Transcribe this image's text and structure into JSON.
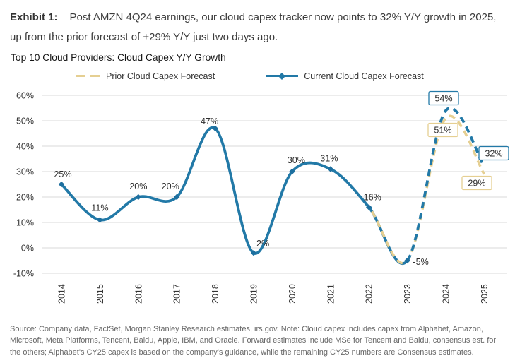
{
  "header": {
    "exhibit_label": "Exhibit 1:",
    "exhibit_text": "Post AMZN 4Q24 earnings, our cloud capex tracker now points to 32% Y/Y growth in 2025, up from the prior forecast of +29% Y/Y just two days ago."
  },
  "chart_title": "Top 10 Cloud Providers: Cloud Capex Y/Y Growth",
  "legend": {
    "prior_label": "Prior Cloud Capex Forecast",
    "current_label": "Current Cloud Capex Forecast"
  },
  "colors": {
    "current_line": "#2279a7",
    "current_marker": "#1d6f9f",
    "prior_line": "#e5cf92",
    "grid": "#d9d9d9",
    "box_fill": "#ffffff"
  },
  "chart_data": {
    "type": "line",
    "categories": [
      "2014",
      "2015",
      "2016",
      "2017",
      "2018",
      "2019",
      "2020",
      "2021",
      "2022",
      "2023",
      "2024",
      "2025"
    ],
    "series": [
      {
        "name": "Current Cloud Capex Forecast",
        "values": [
          25,
          11,
          20,
          20,
          47,
          -2,
          30,
          31,
          16,
          -5,
          54,
          32
        ],
        "style": "solid-then-dashed",
        "dashed_from_index": 9,
        "color": "#2279a7"
      },
      {
        "name": "Prior Cloud Capex Forecast",
        "values": [
          null,
          null,
          null,
          null,
          null,
          null,
          null,
          null,
          16,
          -5,
          51,
          29
        ],
        "style": "dashed",
        "color": "#e5cf92"
      }
    ],
    "point_labels": [
      "25%",
      "11%",
      "20%",
      "20%",
      "47%",
      "-2%",
      "30%",
      "31%",
      "16%",
      "-5%"
    ],
    "boxed_labels": [
      {
        "text": "54%",
        "series": "current",
        "year": "2024"
      },
      {
        "text": "51%",
        "series": "prior",
        "year": "2024"
      },
      {
        "text": "32%",
        "series": "current",
        "year": "2025"
      },
      {
        "text": "29%",
        "series": "prior",
        "year": "2025"
      }
    ],
    "ylim": [
      -10,
      60
    ],
    "ytick_step": 10,
    "ytick_labels": [
      "60%",
      "50%",
      "40%",
      "30%",
      "20%",
      "10%",
      "0%",
      "-10%"
    ],
    "grid": "horizontal-only",
    "legend_position": "top"
  },
  "source_note": "Source: Company data, FactSet, Morgan Stanley Research estimates, irs.gov. Note: Cloud capex includes capex from Alphabet, Amazon, Microsoft, Meta Platforms, Tencent, Baidu, Apple, IBM, and Oracle. Forward estimates include MSe for Tencent and Baidu, consensus est. for the others; Alphabet's CY25 capex is based on the company's guidance, while the remaining CY25 numbers are Consensus estimates."
}
